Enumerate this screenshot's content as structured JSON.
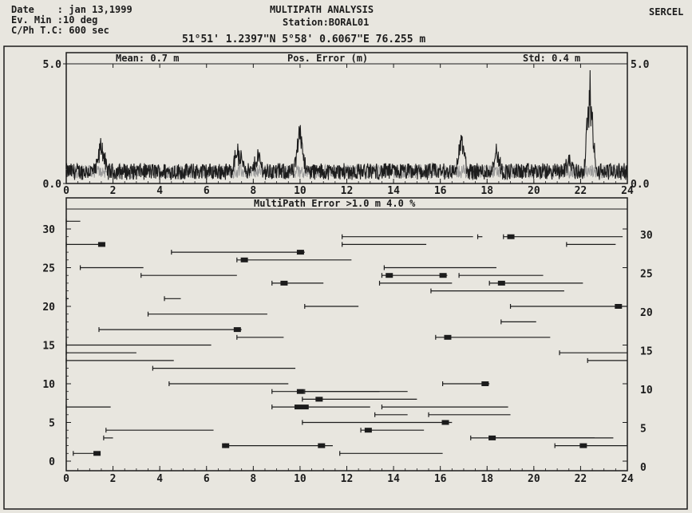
{
  "header": {
    "date_line": "Date    : jan 13,1999",
    "ev_line": "Ev. Min :10 deg",
    "tc_line": "C/Ph T.C: 600 sec",
    "title": "MULTIPATH ANALYSIS",
    "station": "Station:BORAL01",
    "brand": "SERCEL",
    "position": "51°51' 1.2397\"N 5°58' 0.6067\"E 76.255 m"
  },
  "colors": {
    "ink": "#1c1c1c",
    "paper": "#e8e6df",
    "grey_trace": "#9a9a9a"
  },
  "chart_data": [
    {
      "type": "line",
      "title": "Pos. Error (m)",
      "stats": {
        "mean": "Mean: 0.7 m",
        "std": "Std: 0.4 m"
      },
      "xlim": [
        0,
        24
      ],
      "ylim": [
        0,
        5
      ],
      "x_ticks": [
        "0",
        "2",
        "4",
        "6",
        "8",
        "10",
        "12",
        "14",
        "16",
        "18",
        "20",
        "22",
        "24"
      ],
      "y_ticks_left": [
        "0.0",
        "5.0"
      ],
      "y_ticks_right": [
        "0.0",
        "5.0"
      ],
      "baseline": 0.5,
      "noise_amp": 0.35,
      "spikes": [
        {
          "x": 1.5,
          "y": 1.9
        },
        {
          "x": 7.3,
          "y": 1.6
        },
        {
          "x": 7.5,
          "y": 1.2
        },
        {
          "x": 8.2,
          "y": 1.3
        },
        {
          "x": 10.0,
          "y": 2.8
        },
        {
          "x": 16.9,
          "y": 2.2
        },
        {
          "x": 18.4,
          "y": 1.5
        },
        {
          "x": 21.5,
          "y": 1.1
        },
        {
          "x": 22.4,
          "y": 4.8
        }
      ]
    },
    {
      "type": "timeline",
      "title": "MultiPath Error >1.0 m  4.0 %",
      "xlim": [
        0,
        24
      ],
      "ylim": [
        0,
        32
      ],
      "x_ticks": [
        "0",
        "2",
        "4",
        "6",
        "8",
        "10",
        "12",
        "14",
        "16",
        "18",
        "20",
        "22",
        "24"
      ],
      "y_ticks_left": [
        "0",
        "5",
        "10",
        "15",
        "20",
        "25",
        "30"
      ],
      "y_ticks_right": [
        "0",
        "5",
        "10",
        "15",
        "20",
        "25",
        "30"
      ],
      "tracks": [
        {
          "prn": 31,
          "segments": [
            [
              0.0,
              0.6
            ]
          ],
          "blocks": []
        },
        {
          "prn": 29,
          "segments": [
            [
              11.8,
              17.4
            ],
            [
              17.6,
              17.8
            ],
            [
              18.7,
              23.8
            ]
          ],
          "blocks": [
            19.0
          ]
        },
        {
          "prn": 28,
          "segments": [
            [
              0.0,
              1.6
            ],
            [
              11.8,
              15.4
            ],
            [
              21.4,
              23.5
            ]
          ],
          "blocks": [
            1.5
          ]
        },
        {
          "prn": 27,
          "segments": [
            [
              4.5,
              10.2
            ]
          ],
          "blocks": [
            10.0
          ]
        },
        {
          "prn": 26,
          "segments": [
            [
              7.3,
              12.2
            ]
          ],
          "blocks": [
            7.6
          ]
        },
        {
          "prn": 25,
          "segments": [
            [
              0.6,
              3.3
            ],
            [
              13.6,
              18.4
            ]
          ],
          "blocks": []
        },
        {
          "prn": 24,
          "segments": [
            [
              3.2,
              7.3
            ],
            [
              13.5,
              16.3
            ],
            [
              16.8,
              20.4
            ]
          ],
          "blocks": [
            13.8,
            16.1
          ]
        },
        {
          "prn": 23,
          "segments": [
            [
              8.8,
              11.0
            ],
            [
              13.4,
              16.5
            ],
            [
              18.1,
              22.1
            ]
          ],
          "blocks": [
            9.3,
            18.6
          ]
        },
        {
          "prn": 22,
          "segments": [
            [
              15.6,
              21.3
            ]
          ],
          "blocks": []
        },
        {
          "prn": 21,
          "segments": [
            [
              4.2,
              4.9
            ],
            [
              0.0,
              0.1
            ]
          ],
          "blocks": []
        },
        {
          "prn": 20,
          "segments": [
            [
              10.2,
              12.5
            ],
            [
              19.0,
              24.0
            ]
          ],
          "blocks": [
            23.6
          ]
        },
        {
          "prn": 19,
          "segments": [
            [
              3.5,
              8.6
            ]
          ],
          "blocks": []
        },
        {
          "prn": 18,
          "segments": [
            [
              18.6,
              20.1
            ]
          ],
          "blocks": []
        },
        {
          "prn": 17,
          "segments": [
            [
              1.4,
              7.5
            ]
          ],
          "blocks": [
            7.3
          ]
        },
        {
          "prn": 16,
          "segments": [
            [
              7.3,
              9.3
            ],
            [
              15.8,
              20.7
            ]
          ],
          "blocks": [
            16.3
          ]
        },
        {
          "prn": 15,
          "segments": [
            [
              0.0,
              6.2
            ]
          ],
          "blocks": []
        },
        {
          "prn": 14,
          "segments": [
            [
              0.0,
              3.0
            ],
            [
              21.1,
              24.0
            ]
          ],
          "blocks": []
        },
        {
          "prn": 13,
          "segments": [
            [
              0.0,
              4.6
            ],
            [
              22.3,
              24.0
            ]
          ],
          "blocks": []
        },
        {
          "prn": 12,
          "segments": [
            [
              3.7,
              9.8
            ]
          ],
          "blocks": []
        },
        {
          "prn": 10,
          "segments": [
            [
              4.4,
              9.5
            ],
            [
              16.1,
              18.1
            ]
          ],
          "blocks": [
            17.9
          ]
        },
        {
          "prn": 9,
          "segments": [
            [
              8.8,
              14.6
            ],
            [
              10.2,
              13.4
            ]
          ],
          "blocks": [
            10.0
          ]
        },
        {
          "prn": 8,
          "segments": [
            [
              10.1,
              15.0
            ]
          ],
          "blocks": [
            10.8
          ]
        },
        {
          "prn": 7,
          "segments": [
            [
              0.0,
              1.9
            ],
            [
              8.8,
              13.0
            ],
            [
              13.5,
              18.9
            ]
          ],
          "blocks": [
            10.2,
            9.9
          ]
        },
        {
          "prn": 6,
          "segments": [
            [
              13.2,
              14.6
            ],
            [
              15.5,
              19.0
            ]
          ],
          "blocks": []
        },
        {
          "prn": 5,
          "segments": [
            [
              10.1,
              16.5
            ]
          ],
          "blocks": [
            16.2
          ]
        },
        {
          "prn": 4,
          "segments": [
            [
              12.6,
              15.3
            ],
            [
              1.7,
              6.3
            ]
          ],
          "blocks": [
            12.9
          ]
        },
        {
          "prn": 3,
          "segments": [
            [
              1.6,
              2.0
            ],
            [
              17.3,
              22.6
            ],
            [
              18.1,
              23.4
            ]
          ],
          "blocks": [
            18.2
          ]
        },
        {
          "prn": 2,
          "segments": [
            [
              6.8,
              11.4
            ],
            [
              20.9,
              24.0
            ]
          ],
          "blocks": [
            6.8,
            10.9,
            22.1
          ]
        },
        {
          "prn": 1,
          "segments": [
            [
              0.3,
              1.3
            ],
            [
              11.7,
              16.1
            ]
          ],
          "blocks": [
            1.3
          ]
        }
      ]
    }
  ]
}
